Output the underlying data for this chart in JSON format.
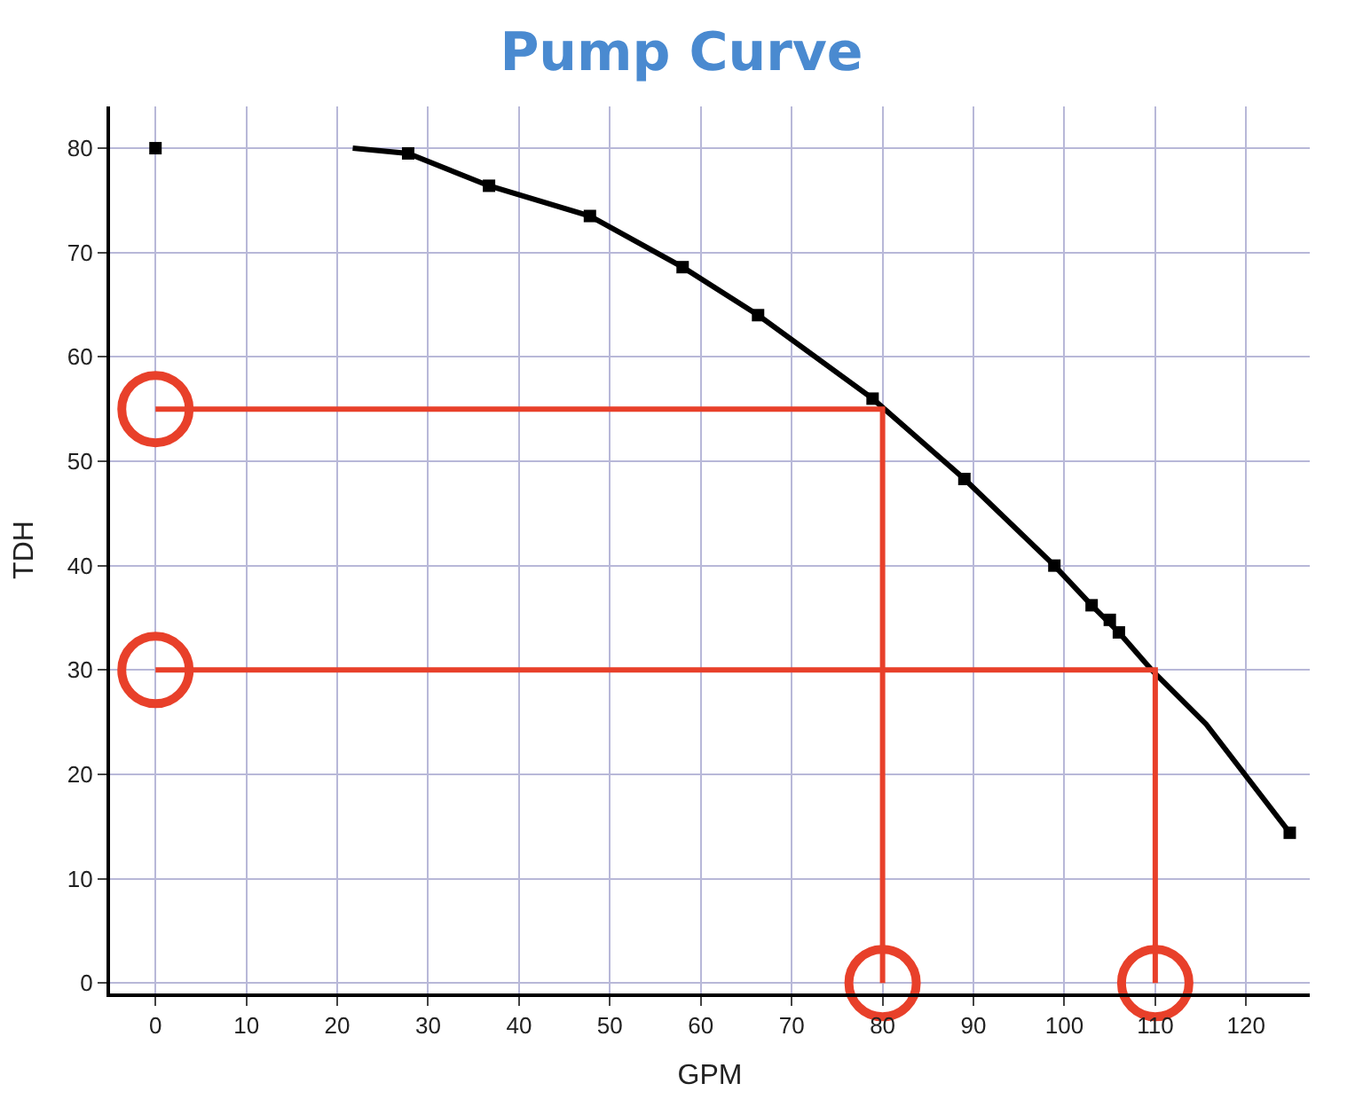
{
  "chart_data": {
    "type": "line",
    "title": "Pump Curve",
    "xlabel": "GPM",
    "ylabel": "TDH",
    "xlim": [
      -5,
      127
    ],
    "ylim": [
      -1,
      84
    ],
    "xticks": [
      0,
      10,
      20,
      30,
      40,
      50,
      60,
      70,
      80,
      90,
      100,
      110,
      120
    ],
    "yticks": [
      0,
      10,
      20,
      30,
      40,
      50,
      60,
      70,
      80
    ],
    "grid": true,
    "legend": false,
    "series": [
      {
        "color": "#000000",
        "marker": "none",
        "x": [
          21.7,
          27.8,
          36.7,
          47.8,
          58,
          66.3,
          78.9,
          89,
          98.9,
          103,
          106,
          109.6,
          115.6,
          124.8
        ],
        "values": [
          80,
          79.5,
          76.4,
          73.5,
          68.6,
          64,
          56,
          48.3,
          40,
          36.2,
          33.6,
          30,
          24.8,
          14.4
        ]
      },
      {
        "type": "scatter",
        "color": "#000000",
        "marker": "square",
        "x": [
          0,
          27.8,
          36.7,
          47.8,
          58,
          66.3,
          78.9,
          89,
          98.9,
          103,
          105,
          106,
          124.8
        ],
        "values": [
          80,
          79.5,
          76.4,
          73.5,
          68.6,
          64,
          56,
          48.3,
          40,
          36.2,
          34.8,
          33.6,
          14.4
        ]
      },
      {
        "color": "#e8402a",
        "marker": "none",
        "x": [
          0,
          80,
          80
        ],
        "values": [
          55,
          55,
          0
        ]
      },
      {
        "color": "#e8402a",
        "marker": "none",
        "x": [
          0,
          110,
          110
        ],
        "values": [
          30,
          30,
          0
        ]
      },
      {
        "type": "scatter",
        "color": "#e8402a",
        "marker": "circle-open",
        "x": [
          0,
          0,
          80,
          110
        ],
        "values": [
          55,
          30,
          0,
          0
        ]
      }
    ]
  }
}
